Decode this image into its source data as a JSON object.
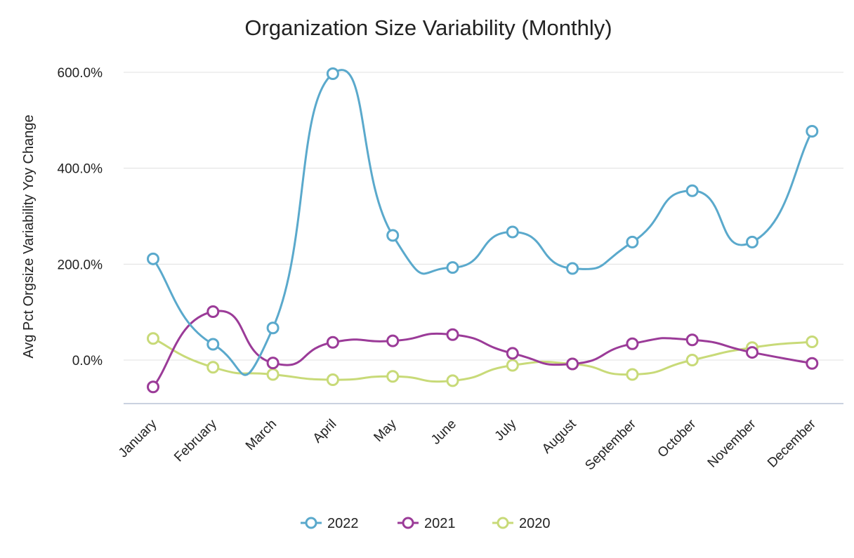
{
  "chart_data": {
    "type": "line",
    "title": "Organization Size Variability (Monthly)",
    "xlabel": "",
    "ylabel": "Avg Pct Orgsize Variability Yoy Change",
    "categories": [
      "January",
      "February",
      "March",
      "April",
      "May",
      "June",
      "July",
      "August",
      "September",
      "October",
      "November",
      "December"
    ],
    "ylim": [
      -90,
      600
    ],
    "yticks": [
      0,
      200,
      400,
      600
    ],
    "ytick_labels": [
      "0.0%",
      "200.0%",
      "400.0%",
      "600.0%"
    ],
    "grid": true,
    "legend_position": "bottom",
    "smooth": true,
    "series": [
      {
        "name": "2022",
        "color": "#5aa9cc",
        "values": [
          211,
          33,
          67,
          597,
          260,
          193,
          267,
          191,
          246,
          353,
          246,
          477
        ]
      },
      {
        "name": "2021",
        "color": "#9b3b98",
        "values": [
          -56,
          101,
          -6,
          37,
          40,
          53,
          14,
          -8,
          34,
          42,
          16,
          -7
        ]
      },
      {
        "name": "2020",
        "color": "#c8da78",
        "values": [
          45,
          -15,
          -30,
          -41,
          -34,
          -43,
          -11,
          -8,
          -30,
          0,
          26,
          38
        ]
      }
    ]
  }
}
